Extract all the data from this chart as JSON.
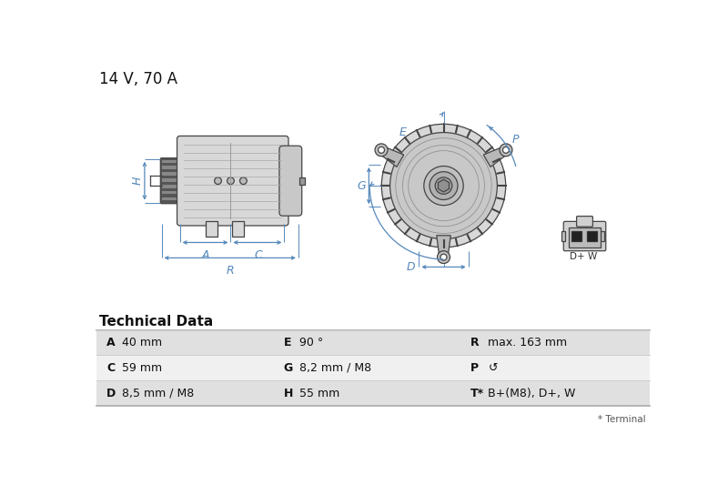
{
  "title": "14 V, 70 A",
  "title_fontsize": 12,
  "tech_data_title": "Technical Data",
  "table_rows": [
    [
      "A",
      "40 mm",
      "E",
      "90 °",
      "R",
      "max. 163 mm"
    ],
    [
      "C",
      "59 mm",
      "G",
      "8,2 mm / M8",
      "P",
      "↺"
    ],
    [
      "D",
      "8,5 mm / M8",
      "H",
      "55 mm",
      "T*",
      "B+(M8), D+, W"
    ]
  ],
  "table_footer": "* Terminal",
  "bg_color": "#ffffff",
  "table_row_color_odd": "#e0e0e0",
  "table_row_color_even": "#f0f0f0",
  "dim_color": "#5588bb",
  "diagram_fg": "#444444",
  "diagram_bg": "#d8d8d8"
}
